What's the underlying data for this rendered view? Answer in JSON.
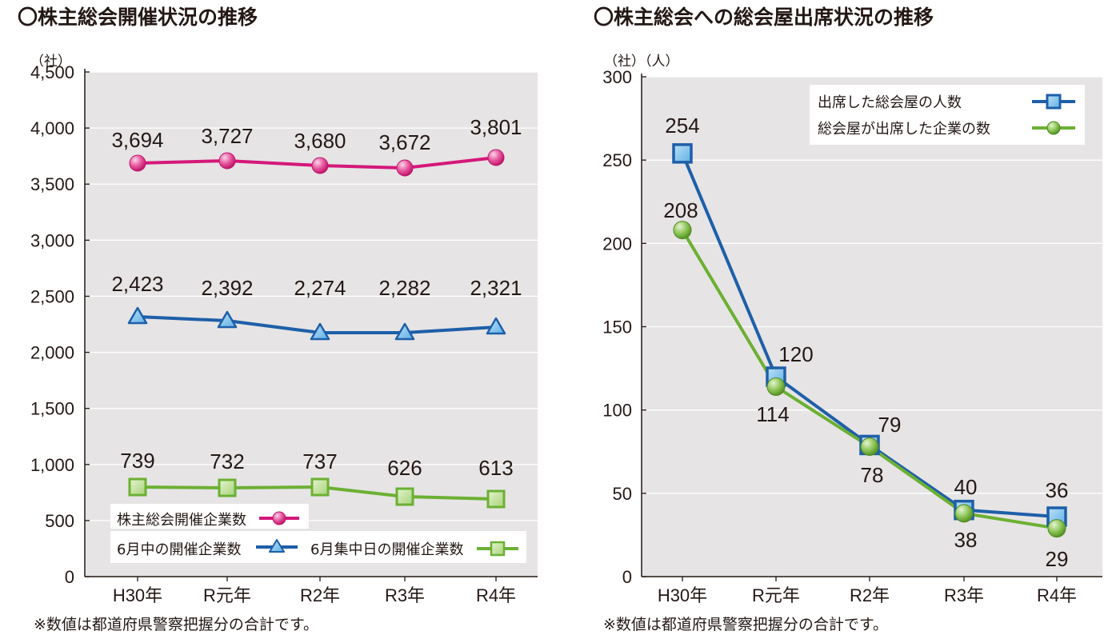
{
  "colors": {
    "plot_bg": "#e6e4e5",
    "magenta": "#d4187a",
    "blue": "#1e5fa8",
    "green": "#6cb033",
    "axis": "#231815"
  },
  "chart_data": [
    {
      "type": "line",
      "title": "〇株主総会開催状況の推移",
      "ylabel": "（社）",
      "categories": [
        "H30年",
        "R元年",
        "R2年",
        "R3年",
        "R4年"
      ],
      "ylim": [
        0,
        4500
      ],
      "yticks": [
        "4,500",
        "4,000",
        "3,500",
        "3,000",
        "2,500",
        "2,000",
        "1,500",
        "1,000",
        "500",
        "0"
      ],
      "grid": true,
      "legend": "bottom",
      "series": [
        {
          "name": "株主総会開催企業数",
          "values": [
            3694,
            3727,
            3680,
            3672,
            3801
          ],
          "labels": [
            "3,694",
            "3,727",
            "3,680",
            "3,672",
            "3,801"
          ],
          "marker": "circle",
          "color": "#d4187a"
        },
        {
          "name": "6月中の開催企業数",
          "values": [
            2423,
            2392,
            2274,
            2282,
            2321
          ],
          "labels": [
            "2,423",
            "2,392",
            "2,274",
            "2,282",
            "2,321"
          ],
          "marker": "triangle",
          "color": "#1e5fa8"
        },
        {
          "name": "6月集中日の開催企業数",
          "values": [
            739,
            732,
            737,
            626,
            613
          ],
          "labels": [
            "739",
            "732",
            "737",
            "626",
            "613"
          ],
          "marker": "square",
          "color": "#6cb033"
        }
      ],
      "note": "※数値は都道府県警察把握分の合計です。"
    },
    {
      "type": "line",
      "title": "〇株主総会への総会屋出席状況の推移",
      "ylabel": "（社）（人）",
      "categories": [
        "H30年",
        "R元年",
        "R2年",
        "R3年",
        "R4年"
      ],
      "ylim": [
        0,
        300
      ],
      "yticks": [
        "300",
        "250",
        "200",
        "150",
        "100",
        "50",
        "0"
      ],
      "grid": true,
      "legend": "top-right",
      "series": [
        {
          "name": "出席した総会屋の人数",
          "values": [
            254,
            120,
            79,
            40,
            36
          ],
          "labels": [
            "254",
            "120",
            "79",
            "40",
            "36"
          ],
          "marker": "square",
          "color": "#1e5fa8"
        },
        {
          "name": "総会屋が出席した企業の数",
          "values": [
            208,
            114,
            78,
            38,
            29
          ],
          "labels": [
            "208",
            "114",
            "78",
            "38",
            "29"
          ],
          "marker": "circle",
          "color": "#6cb033"
        }
      ],
      "note": "※数値は都道府県警察把握分の合計です。"
    }
  ]
}
